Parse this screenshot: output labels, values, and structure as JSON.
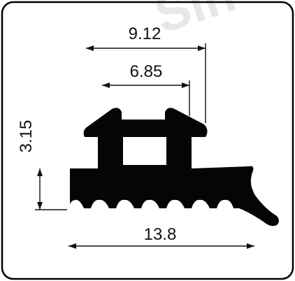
{
  "watermark": {
    "text": "Sin"
  },
  "dimensions": {
    "top_width": "9.12",
    "inner_width": "6.85",
    "height": "3.15",
    "base_width": "13.8"
  },
  "colors": {
    "profile_fill": "#050505",
    "frame_stroke": "#000000",
    "background": "#ffffff",
    "watermark": "#e7e7e7"
  }
}
